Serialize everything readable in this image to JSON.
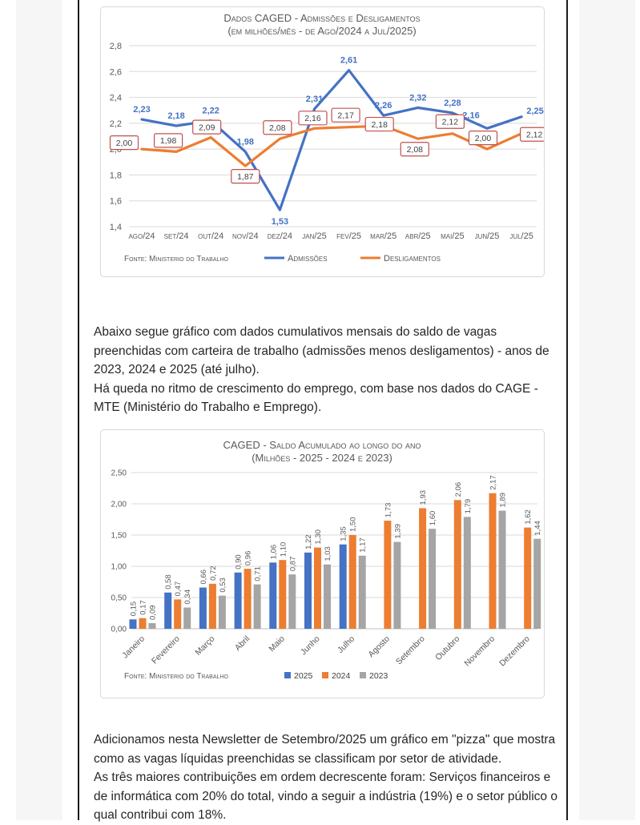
{
  "document": {
    "paragraphs": {
      "p1": "Abaixo segue gráfico com dados cumulativos mensais do saldo de vagas preenchidas com carteira de trabalho (admissões menos desligamentos)  - anos de 2023, 2024 e 2025 (até julho).",
      "p2": "Há queda no ritmo de crescimento do emprego, com base nos dados do CAGE - MTE (Ministério do Trabalho e Emprego).",
      "p3": "Adicionamos nesta Newsletter de Setembro/2025 um gráfico em \"pizza\" que mostra como as vagas líquidas preenchidas se classificam por setor de atividade.",
      "p4": "As três maiores contribuições em ordem decrescente foram: Serviços financeiros e de informática com 20% do total, vindo a seguir a indústria (19%) e o setor público o qual contribui com 18%."
    }
  },
  "chart_data": [
    {
      "type": "line",
      "title": "Dados CAGED - Admissões e Desligamentos",
      "subtitle": "(em milhões/mês - de Ago/2024 a Jul/2025)",
      "source": "Fonte: Ministerio do Trabalho",
      "categories": [
        "ago/24",
        "set/24",
        "out/24",
        "nov/24",
        "dez/24",
        "jan/25",
        "fev/25",
        "mar/25",
        "abr/25",
        "mai/25",
        "jun/25",
        "jul/25"
      ],
      "series": [
        {
          "name": "Admissões",
          "color": "#4472C4",
          "values": [
            2.23,
            2.18,
            2.22,
            1.98,
            1.53,
            2.31,
            2.61,
            2.26,
            2.32,
            2.28,
            2.16,
            2.25
          ]
        },
        {
          "name": "Desligamentos",
          "color": "#ED7D31",
          "values": [
            2.0,
            1.98,
            2.09,
            1.87,
            2.08,
            2.16,
            2.17,
            2.18,
            2.08,
            2.12,
            2.0,
            2.12
          ]
        }
      ],
      "ylim": [
        1.4,
        2.8
      ],
      "ytick_step": 0.2,
      "ytick_decimals": 1,
      "label_decimals": 2,
      "grid": true,
      "legend_position": "bottom",
      "label_box_border_color": "#C0504D",
      "axis_text_color": "#595959"
    },
    {
      "type": "bar",
      "title": "CAGED - Saldo Acumulado ao longo do ano",
      "subtitle": "(Milhões - 2025 - 2024 e 2023)",
      "source": "Fonte: Ministerio do Trabalho",
      "categories": [
        "Janeiro",
        "Fevereiro",
        "Março",
        "Abril",
        "Maio",
        "Junho",
        "Julho",
        "Agosto",
        "Setembro",
        "Outubro",
        "Novembro",
        "Dezembro"
      ],
      "series": [
        {
          "name": "2025",
          "color": "#4472C4",
          "values": [
            0.15,
            0.58,
            0.66,
            0.9,
            1.06,
            1.22,
            1.35,
            null,
            null,
            null,
            null,
            null
          ]
        },
        {
          "name": "2024",
          "color": "#ED7D31",
          "values": [
            0.17,
            0.47,
            0.72,
            0.96,
            1.1,
            1.3,
            1.5,
            1.73,
            1.93,
            2.06,
            2.17,
            1.62
          ]
        },
        {
          "name": "2023",
          "color": "#A5A5A5",
          "values": [
            0.09,
            0.34,
            0.53,
            0.71,
            0.87,
            1.03,
            1.17,
            1.39,
            1.6,
            1.79,
            1.89,
            1.44
          ]
        }
      ],
      "ylim": [
        0,
        2.5
      ],
      "ytick_step": 0.5,
      "ytick_decimals": 2,
      "label_decimals": 2,
      "grid": true,
      "legend_position": "bottom",
      "axis_text_color": "#595959"
    }
  ]
}
